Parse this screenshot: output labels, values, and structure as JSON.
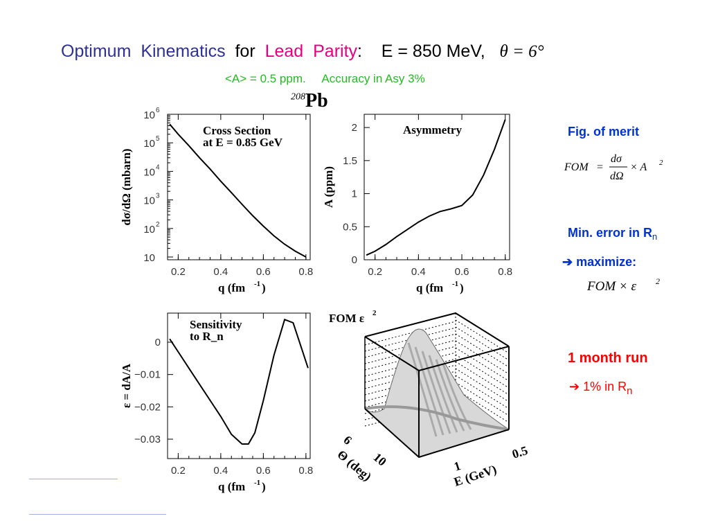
{
  "header": {
    "optimum": "Optimum",
    "kinematics": "Kinematics",
    "for": "for",
    "lead": "Lead",
    "parity": "Parity",
    "colon": ":",
    "energy": "E = 850 MeV,",
    "theta": "θ = 6°"
  },
  "subtitle": {
    "asymmetry": "<A> = 0.5 ppm.",
    "accuracy": "Accuracy in Asy 3%"
  },
  "nucleus": {
    "mass": "208",
    "symbol": "Pb"
  },
  "side": {
    "fig_of_merit": "Fig. of merit",
    "fom_formula": "FOM = (dσ/dΩ) × A²",
    "fom_lhs": "FOM",
    "fom_eq": "=",
    "fom_num": "dσ",
    "fom_den": "dΩ",
    "fom_times": "× A",
    "fom_exp": "2",
    "min_error": "Min. error in R",
    "min_error_sub": "n",
    "arrow": "➔",
    "maximize": "maximize:",
    "fom_eps": "FOM × ε",
    "fom_eps_exp": "2",
    "month_run": "1 month run",
    "result": "1%  in R",
    "result_sub": "n"
  },
  "colors": {
    "blue": "#2e3192",
    "pink": "#e6007e",
    "green": "#22bb22",
    "red": "#ff0000",
    "navy": "#0033cc"
  },
  "chart_data": [
    {
      "type": "line",
      "title": "Cross Section at E = 0.85 GeV",
      "title_line1": "Cross Section",
      "title_line2": "at E = 0.85 GeV",
      "xlabel": "q  (fm",
      "xlabel_exp": "-1",
      "xlabel_close": ")",
      "ylabel": "dσ/dΩ  (mbarn)",
      "yscale": "log",
      "xlim": [
        0.15,
        0.82
      ],
      "ylim": [
        8,
        1000000
      ],
      "xticks": [
        "0.2",
        "0.4",
        "0.6",
        "0.8"
      ],
      "yticks": [
        {
          "v": 10,
          "label": "10",
          "exp": ""
        },
        {
          "v": 100,
          "label": "10",
          "exp": "2"
        },
        {
          "v": 1000,
          "label": "10",
          "exp": "3"
        },
        {
          "v": 10000,
          "label": "10",
          "exp": "4"
        },
        {
          "v": 100000,
          "label": "10",
          "exp": "5"
        },
        {
          "v": 1000000,
          "label": "10",
          "exp": "6"
        }
      ],
      "x": [
        0.16,
        0.2,
        0.25,
        0.3,
        0.35,
        0.4,
        0.45,
        0.5,
        0.55,
        0.6,
        0.65,
        0.7,
        0.75,
        0.8
      ],
      "y": [
        450000,
        200000,
        80000,
        30000,
        12000,
        4500,
        1800,
        700,
        280,
        120,
        55,
        28,
        16,
        10
      ]
    },
    {
      "type": "line",
      "title": "Asymmetry",
      "xlabel": "q  (fm",
      "xlabel_exp": "-1",
      "xlabel_close": ")",
      "ylabel": "A  (ppm)",
      "xlim": [
        0.15,
        0.82
      ],
      "ylim": [
        0,
        2.2
      ],
      "xticks": [
        "0.2",
        "0.4",
        "0.6",
        "0.8"
      ],
      "yticks": [
        "0",
        "0.5",
        "1",
        "1.5",
        "2"
      ],
      "x": [
        0.16,
        0.2,
        0.25,
        0.3,
        0.35,
        0.4,
        0.45,
        0.5,
        0.55,
        0.6,
        0.65,
        0.7,
        0.75,
        0.8
      ],
      "y": [
        0.07,
        0.13,
        0.23,
        0.35,
        0.46,
        0.57,
        0.66,
        0.73,
        0.77,
        0.82,
        0.98,
        1.28,
        1.67,
        2.12
      ]
    },
    {
      "type": "line",
      "title": "Sensitivity to R_n",
      "title_line1": "Sensitivity",
      "title_line2": "to R_n",
      "xlabel": "q  (fm",
      "xlabel_exp": "-1",
      "xlabel_close": ")",
      "ylabel": "ε = dA/A",
      "xlim": [
        0.15,
        0.82
      ],
      "ylim": [
        -0.036,
        0.009
      ],
      "xticks": [
        "0.2",
        "0.4",
        "0.6",
        "0.8"
      ],
      "yticks": [
        "0",
        "−0.01",
        "−0.02",
        "−0.03"
      ],
      "x": [
        0.16,
        0.2,
        0.25,
        0.3,
        0.35,
        0.4,
        0.45,
        0.5,
        0.53,
        0.56,
        0.6,
        0.65,
        0.7,
        0.74,
        0.78,
        0.81
      ],
      "y": [
        0.001,
        -0.003,
        -0.008,
        -0.013,
        -0.018,
        -0.023,
        -0.0285,
        -0.0315,
        -0.0315,
        -0.028,
        -0.018,
        -0.004,
        0.007,
        0.006,
        -0.002,
        -0.008
      ]
    },
    {
      "type": "surface",
      "title": "FOM ε²",
      "title_text": "FOM ε",
      "title_exp": "2",
      "xlabel": "E (GeV)",
      "ylabel": "Θ (deg)",
      "xticks": [
        "1",
        "0.5"
      ],
      "yticks": [
        "6",
        "10"
      ]
    }
  ]
}
